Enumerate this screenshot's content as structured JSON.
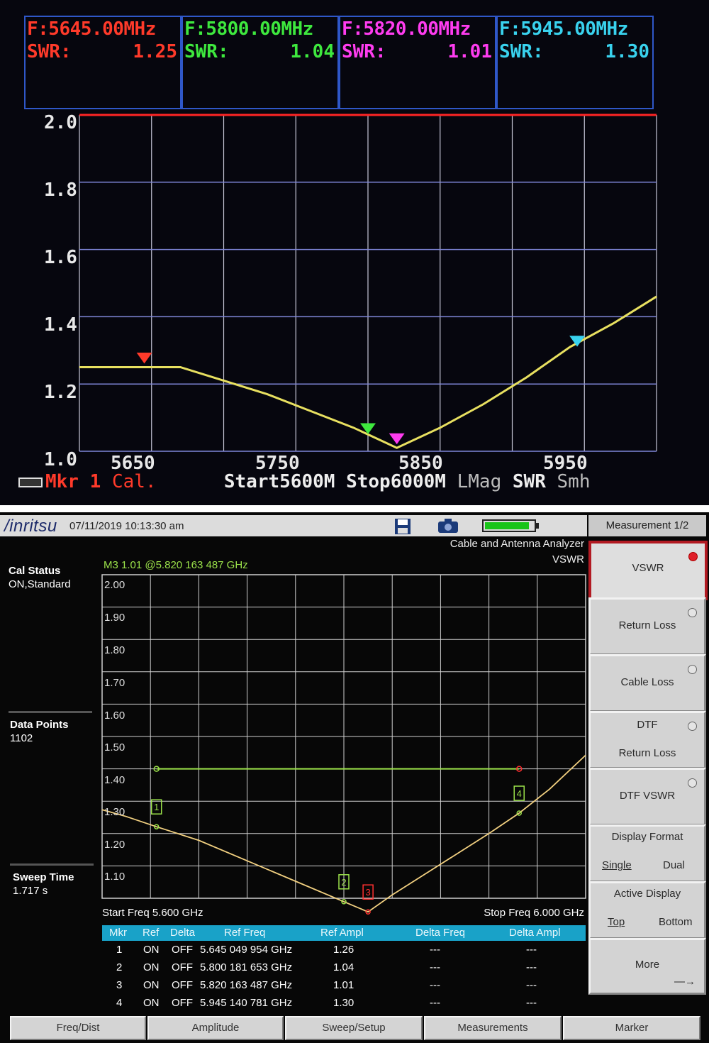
{
  "top": {
    "markers": [
      {
        "freq": "F:5645.00MHz",
        "swr_label": "SWR:",
        "swr_value": "1.25",
        "color": "#ff3a2a"
      },
      {
        "freq": "F:5800.00MHz",
        "swr_label": "SWR:",
        "swr_value": "1.04",
        "color": "#3ee83e"
      },
      {
        "freq": "F:5820.00MHz",
        "swr_label": "SWR:",
        "swr_value": "1.01",
        "color": "#ff3cf0"
      },
      {
        "freq": "F:5945.00MHz",
        "swr_label": "SWR:",
        "swr_value": "1.30",
        "color": "#39d2ee"
      }
    ],
    "y_ticks": [
      "2.0",
      "1.8",
      "1.6",
      "1.4",
      "1.2",
      "1.0"
    ],
    "x_ticks": [
      "5650",
      "5750",
      "5850",
      "5950"
    ],
    "status": {
      "mkr": "Mkr",
      "mkr_num": "1",
      "cal": "Cal.",
      "start": "Start5600M",
      "stop": "Stop6000M",
      "lmag": "LMag",
      "swr": "SWR",
      "smh": "Smh"
    }
  },
  "bottom": {
    "brand": "/inritsu",
    "datetime": "07/11/2019 10:13:30 am",
    "mode": "Cable and Antenna Analyzer",
    "measurement": "VSWR",
    "cal_status_label": "Cal Status",
    "cal_status_value": "ON,Standard",
    "data_points_label": "Data Points",
    "data_points_value": "1102",
    "sweep_time_label": "Sweep Time",
    "sweep_time_value": "1.717 s",
    "marker_readout": "M3 1.01 @5.820 163 487 GHz",
    "y_ticks": [
      "2.00",
      "1.90",
      "1.80",
      "1.70",
      "1.60",
      "1.50",
      "1.40",
      "1.30",
      "1.20",
      "1.10"
    ],
    "start_freq": "Start Freq 5.600 GHz",
    "stop_freq": "Stop Freq 6.000 GHz",
    "marker_labels": [
      "1",
      "2",
      "3",
      "4"
    ],
    "table": {
      "headers": [
        "Mkr",
        "Ref",
        "Delta",
        "Ref Freq",
        "Ref Ampl",
        "Delta Freq",
        "Delta Ampl"
      ],
      "rows": [
        [
          "1",
          "ON",
          "OFF",
          "5.645 049 954 GHz",
          "1.26",
          "---",
          "---"
        ],
        [
          "2",
          "ON",
          "OFF",
          "5.800 181 653 GHz",
          "1.04",
          "---",
          "---"
        ],
        [
          "3",
          "ON",
          "OFF",
          "5.820 163 487 GHz",
          "1.01",
          "---",
          "---"
        ],
        [
          "4",
          "ON",
          "OFF",
          "5.945 140 781 GHz",
          "1.30",
          "---",
          "---"
        ]
      ]
    },
    "softkeys": {
      "title": "Measurement 1/2",
      "vswr": "VSWR",
      "return_loss": "Return Loss",
      "cable_loss": "Cable Loss",
      "dtf": "DTF",
      "dtf_return_loss": "Return Loss",
      "dtf_vswr": "DTF VSWR",
      "display_format": "Display Format",
      "single": "Single",
      "dual": "Dual",
      "active_display": "Active Display",
      "top": "Top",
      "bottom": "Bottom",
      "more": "More",
      "more_arrow": "—→"
    },
    "bottom_keys": [
      "Freq/Dist",
      "Amplitude",
      "Sweep/Setup",
      "Measurements",
      "Marker"
    ]
  },
  "chart_data": [
    {
      "type": "line",
      "title": "",
      "xlabel": "",
      "ylabel": "",
      "xlim": [
        5600,
        6000
      ],
      "ylim": [
        1.0,
        2.0
      ],
      "x_ticks": [
        5650,
        5750,
        5850,
        5950
      ],
      "series": [
        {
          "values_x": [
            5600,
            5620,
            5650,
            5670,
            5700,
            5730,
            5760,
            5790,
            5810,
            5820,
            5830,
            5850,
            5880,
            5910,
            5940,
            5970,
            6000
          ],
          "values_y": [
            1.25,
            1.25,
            1.25,
            1.25,
            1.21,
            1.17,
            1.12,
            1.07,
            1.03,
            1.01,
            1.03,
            1.07,
            1.14,
            1.22,
            1.31,
            1.38,
            1.46
          ]
        }
      ],
      "limit_line": 2.0,
      "markers": [
        {
          "label": "1",
          "x": 5645,
          "y": 1.25
        },
        {
          "label": "2",
          "x": 5800,
          "y": 1.04
        },
        {
          "label": "3",
          "x": 5820,
          "y": 1.01
        },
        {
          "label": "4",
          "x": 5945,
          "y": 1.3
        }
      ],
      "grid": true
    },
    {
      "type": "line",
      "title": "",
      "xlabel": "",
      "ylabel": "",
      "xlim": [
        5600,
        6000
      ],
      "ylim": [
        1.05,
        2.0
      ],
      "series": [
        {
          "values_x": [
            5600,
            5620,
            5645,
            5680,
            5720,
            5760,
            5800,
            5820,
            5840,
            5880,
            5920,
            5945,
            5970,
            6000
          ],
          "values_y": [
            1.31,
            1.29,
            1.26,
            1.22,
            1.16,
            1.1,
            1.04,
            1.01,
            1.06,
            1.15,
            1.24,
            1.3,
            1.37,
            1.47
          ]
        }
      ],
      "limit_line": {
        "y": 1.43,
        "x_start": 5645,
        "x_end": 5945
      },
      "markers": [
        {
          "label": "1",
          "x": 5645,
          "y": 1.26
        },
        {
          "label": "2",
          "x": 5800,
          "y": 1.04
        },
        {
          "label": "3",
          "x": 5820,
          "y": 1.01
        },
        {
          "label": "4",
          "x": 5945,
          "y": 1.3
        }
      ],
      "grid": true
    }
  ]
}
